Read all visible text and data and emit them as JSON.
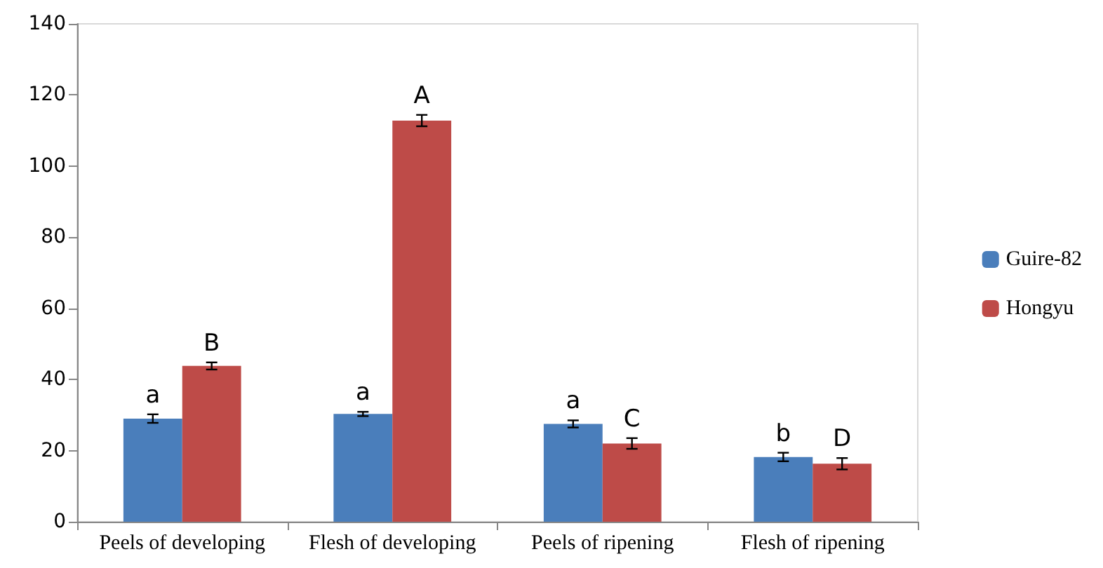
{
  "chart_data": {
    "type": "bar",
    "categories": [
      "Peels of developing",
      "Flesh of developing",
      "Peels of ripening",
      "Flesh of ripening"
    ],
    "series": [
      {
        "name": "Guire-82",
        "color": "#4a7ebb",
        "values": [
          29,
          30.3,
          27.5,
          18.2
        ],
        "errors": [
          1.2,
          0.6,
          1,
          1.2
        ],
        "value_labels": [
          "a",
          "a",
          "a",
          "b"
        ]
      },
      {
        "name": "Hongyu",
        "color": "#be4b48",
        "values": [
          43.8,
          112.8,
          22,
          16.3
        ],
        "errors": [
          1,
          1.6,
          1.5,
          1.6
        ],
        "value_labels": [
          "B",
          "A",
          "C",
          "D"
        ]
      }
    ],
    "ylim": [
      0,
      140
    ],
    "yticks": [
      0,
      20,
      40,
      60,
      80,
      100,
      120,
      140
    ],
    "grid": false,
    "legend": "right"
  }
}
